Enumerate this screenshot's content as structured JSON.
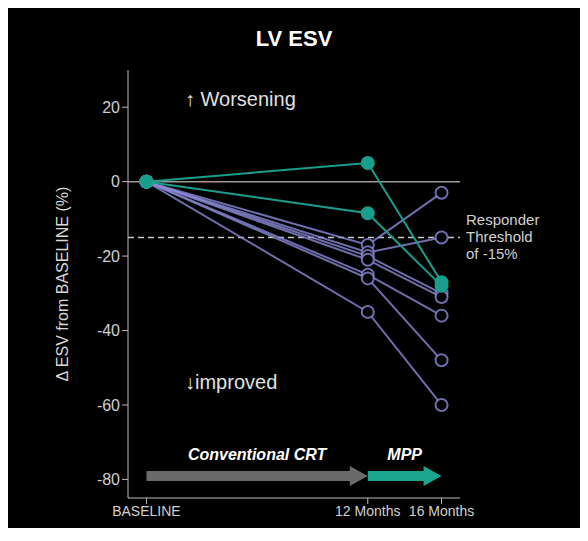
{
  "chart_data": {
    "type": "line",
    "title": "LV ESV",
    "y_label": "Δ ESV from BASELINE (%)",
    "x": [
      0,
      12,
      16
    ],
    "xlim": [
      -1,
      17
    ],
    "xticks": [
      {
        "value": 0,
        "label": "BASELINE"
      },
      {
        "value": 12,
        "label": "12 Months"
      },
      {
        "value": 16,
        "label": "16 Months"
      }
    ],
    "ylim": [
      -85,
      30
    ],
    "yticks": [
      20,
      0,
      -20,
      -40,
      -60,
      -80
    ],
    "grid": false,
    "series": [
      {
        "color": "#8a8ad6",
        "marker": "open_circle",
        "values": [
          0,
          -17,
          -3
        ]
      },
      {
        "color": "#8a8ad6",
        "marker": "open_circle",
        "values": [
          0,
          -19,
          -15
        ]
      },
      {
        "color": "#8a8ad6",
        "marker": "open_circle",
        "values": [
          0,
          -20,
          -30
        ]
      },
      {
        "color": "#8a8ad6",
        "marker": "open_circle",
        "values": [
          0,
          -21,
          -31
        ]
      },
      {
        "color": "#8a8ad6",
        "marker": "open_circle",
        "values": [
          0,
          -25,
          -36
        ]
      },
      {
        "color": "#8a8ad6",
        "marker": "open_circle",
        "values": [
          0,
          -26,
          -48
        ]
      },
      {
        "color": "#8a8ad6",
        "marker": "open_circle",
        "values": [
          0,
          -35,
          -60
        ]
      },
      {
        "color": "#1a9e8c",
        "marker": "circle",
        "values": [
          0,
          5,
          -27
        ]
      },
      {
        "color": "#1a9e8c",
        "marker": "circle",
        "values": [
          0,
          -8.5,
          -28
        ]
      }
    ],
    "reference_lines": [
      {
        "value": 0,
        "color": "#9a9a9a",
        "line_style": "solid"
      },
      {
        "value": -15,
        "label": "Responder Threshold of -15%",
        "color": "#c8c8c8",
        "line_style": "dashed"
      }
    ],
    "annotations": [
      "↑ Worsening",
      "↓improved"
    ],
    "phases": [
      {
        "label": "Conventional CRT",
        "start": 0,
        "end": 12,
        "color": "#6a6a6a"
      },
      {
        "label": "MPP",
        "start": 12,
        "end": 16,
        "color": "#1aa591"
      }
    ]
  }
}
